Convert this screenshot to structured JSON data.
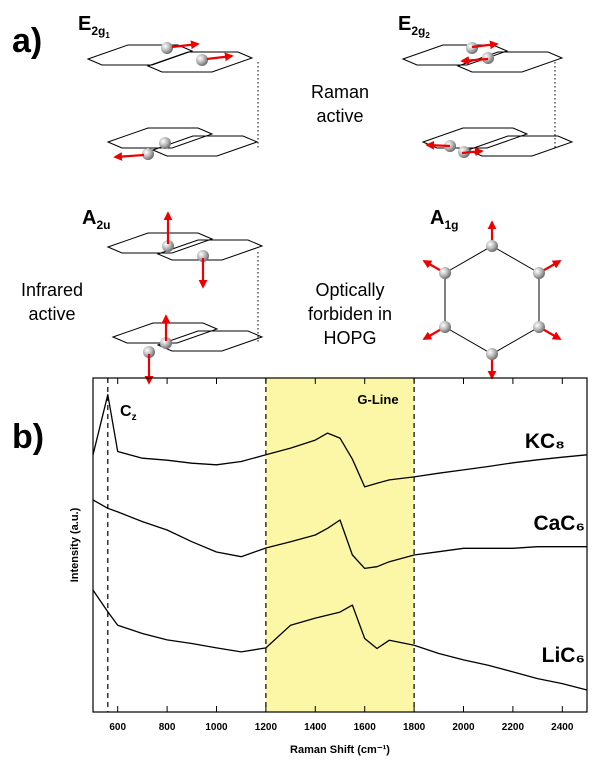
{
  "panel_a": {
    "label": "a)",
    "modes": [
      {
        "base": "E",
        "sub": "2g",
        "subsub": "1"
      },
      {
        "base": "E",
        "sub": "2g",
        "subsub": "2"
      },
      {
        "base": "A",
        "sub": "2u"
      },
      {
        "base": "A",
        "sub": "1g"
      }
    ],
    "raman_note": [
      "Raman",
      "active"
    ],
    "infrared_note": [
      "Infrared",
      "active"
    ],
    "forbidden_note": [
      "Optically",
      "forbiden in",
      "HOPG"
    ]
  },
  "chart_data": {
    "type": "line",
    "panel_label": "b)",
    "x_label": "Raman Shift (cm⁻¹)",
    "y_label": "Intensity (a.u.)",
    "xlim": [
      500,
      2500
    ],
    "ylim": [
      0,
      100
    ],
    "xticks": [
      600,
      800,
      1000,
      1200,
      1400,
      1600,
      1800,
      2000,
      2200,
      2400
    ],
    "shaded_region": [
      1200,
      1800
    ],
    "shade_color": "#fbf7a6",
    "shade_label": "G-Line",
    "vlines": [
      560,
      1200,
      1800
    ],
    "vline_label": {
      "base": "C",
      "sub": "z"
    },
    "x": [
      500,
      560,
      600,
      700,
      800,
      900,
      1000,
      1100,
      1200,
      1300,
      1400,
      1450,
      1500,
      1550,
      1600,
      1650,
      1700,
      1800,
      1900,
      2000,
      2100,
      2200,
      2300,
      2400,
      2500
    ],
    "series": [
      {
        "name": "KC₈",
        "color": "#000000",
        "values": [
          77,
          95,
          78,
          76,
          75.4,
          74.5,
          74,
          75,
          77,
          79,
          81.4,
          83.5,
          82,
          75.7,
          67.4,
          68.5,
          69.5,
          70.4,
          71.5,
          72.5,
          73.5,
          74.6,
          75.5,
          76.3,
          77
        ]
      },
      {
        "name": "CaC₆",
        "color": "#000000",
        "values": [
          63.5,
          61,
          59.9,
          57,
          54.5,
          51,
          47.9,
          46.5,
          49.1,
          51,
          53,
          55,
          57.5,
          47,
          43,
          43.5,
          45,
          47,
          48,
          49,
          49,
          49,
          49.5,
          49.5,
          49.5
        ]
      },
      {
        "name": "LiC₆",
        "color": "#000000",
        "values": [
          36.5,
          30,
          26,
          23.5,
          21.6,
          20.5,
          19.2,
          18,
          19.2,
          26,
          28.1,
          29,
          29.9,
          32,
          22,
          19,
          21.5,
          20,
          17.5,
          15.6,
          14,
          12,
          10,
          8.5,
          6.6
        ]
      }
    ]
  }
}
